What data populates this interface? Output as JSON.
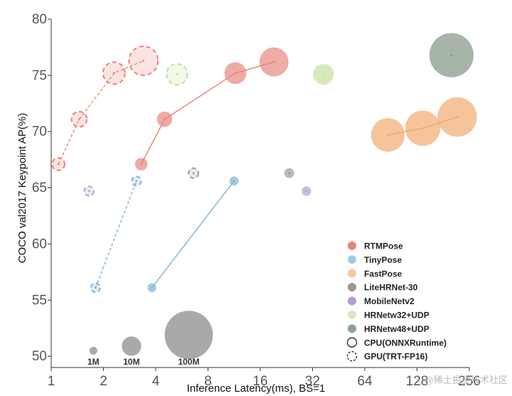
{
  "chart_data": {
    "type": "scatter",
    "xlabel": "Inference Latency(ms), BS=1",
    "ylabel": "COCO val2017 Keypoint AP(%)",
    "x_scale": "log2",
    "xlim": [
      1,
      256
    ],
    "ylim": [
      49,
      80
    ],
    "x_ticks": [
      1,
      2,
      4,
      8,
      16,
      32,
      64,
      128,
      256
    ],
    "x_tick_labels": [
      "1",
      "2",
      "4",
      "8",
      "16",
      "32",
      "64",
      "128",
      "256"
    ],
    "y_ticks": [
      50,
      55,
      60,
      65,
      70,
      75,
      80
    ],
    "y_tick_labels": [
      "50",
      "55",
      "60",
      "65",
      "70",
      "75",
      "80"
    ],
    "grid": false,
    "legend_position": "bottom-right",
    "legend": [
      {
        "label": "RTMPose",
        "color": "#e8837b",
        "style": "filled"
      },
      {
        "label": "TinyPose",
        "color": "#9ecae1",
        "style": "filled"
      },
      {
        "label": "FastPose",
        "color": "#f6c898",
        "style": "filled"
      },
      {
        "label": "LiteHRNet-30",
        "color": "#9a9a9a",
        "style": "filled"
      },
      {
        "label": "MobileNetv2",
        "color": "#b59bcf",
        "style": "filled"
      },
      {
        "label": "HRNetw32+UDP",
        "color": "#d6e8c3",
        "style": "filled"
      },
      {
        "label": "HRNetw48+UDP",
        "color": "#8fa390",
        "style": "filled"
      },
      {
        "label": "CPU(ONNXRuntime)",
        "color": "#222222",
        "style": "solid-outline"
      },
      {
        "label": "GPU(TRT-FP16)",
        "color": "#222222",
        "style": "dashed-outline"
      }
    ],
    "size_legend": [
      {
        "label": "1M",
        "x": 1.75,
        "y": 50.5,
        "params_m": 1
      },
      {
        "label": "10M",
        "x": 2.9,
        "y": 50.9,
        "params_m": 10
      },
      {
        "label": "100M",
        "x": 6.2,
        "y": 51.9,
        "params_m": 100
      }
    ],
    "series": [
      {
        "model": "RTMPose",
        "device": "CPU",
        "color": "#e8837b",
        "line": "solid",
        "points": [
          {
            "x": 3.3,
            "y": 67.1,
            "params_m": 3.3
          },
          {
            "x": 4.5,
            "y": 71.1,
            "params_m": 5.5
          },
          {
            "x": 11.5,
            "y": 75.2,
            "params_m": 13.6
          },
          {
            "x": 19.2,
            "y": 76.2,
            "params_m": 27.7
          }
        ]
      },
      {
        "model": "RTMPose",
        "device": "GPU",
        "color": "#e8837b",
        "line": "dashed",
        "points": [
          {
            "x": 1.1,
            "y": 67.1,
            "params_m": 3.3
          },
          {
            "x": 1.45,
            "y": 71.1,
            "params_m": 5.5
          },
          {
            "x": 2.3,
            "y": 75.2,
            "params_m": 13.6
          },
          {
            "x": 3.4,
            "y": 76.3,
            "params_m": 27.7
          }
        ]
      },
      {
        "model": "TinyPose",
        "device": "CPU",
        "color": "#7fb2d3",
        "line": "solid",
        "points": [
          {
            "x": 3.8,
            "y": 56.1,
            "params_m": 1.4
          },
          {
            "x": 11.3,
            "y": 65.6,
            "params_m": 1.5
          }
        ]
      },
      {
        "model": "TinyPose",
        "device": "GPU",
        "color": "#7fb2d3",
        "line": "dashed",
        "points": [
          {
            "x": 1.8,
            "y": 56.1,
            "params_m": 1.4
          },
          {
            "x": 3.1,
            "y": 65.6,
            "params_m": 1.5
          }
        ]
      },
      {
        "model": "FastPose",
        "device": "CPU",
        "color": "#f0a86a",
        "line": "solid",
        "points": [
          {
            "x": 87,
            "y": 69.7,
            "params_m": 40
          },
          {
            "x": 138,
            "y": 70.3,
            "params_m": 45
          },
          {
            "x": 218,
            "y": 71.3,
            "params_m": 60
          }
        ]
      },
      {
        "model": "LiteHRNet-30",
        "device": "CPU",
        "color": "#9a9a9a",
        "line": "none",
        "points": [
          {
            "x": 23.5,
            "y": 66.3,
            "params_m": 1.8
          }
        ]
      },
      {
        "model": "LiteHRNet-30",
        "device": "GPU",
        "color": "#9a9a9a",
        "line": "none",
        "points": [
          {
            "x": 6.6,
            "y": 66.3,
            "params_m": 1.8
          }
        ]
      },
      {
        "model": "MobileNetv2",
        "device": "CPU",
        "color": "#b59bcf",
        "line": "none",
        "points": [
          {
            "x": 29.5,
            "y": 64.7,
            "params_m": 1.6
          }
        ]
      },
      {
        "model": "MobileNetv2",
        "device": "GPU",
        "color": "#b59bcf",
        "line": "none",
        "points": [
          {
            "x": 1.65,
            "y": 64.7,
            "params_m": 1.6
          }
        ]
      },
      {
        "model": "HRNetw32+UDP",
        "device": "CPU",
        "color": "#c5de9f",
        "line": "none",
        "points": [
          {
            "x": 37,
            "y": 75.1,
            "params_m": 12
          }
        ]
      },
      {
        "model": "HRNetw32+UDP",
        "device": "GPU",
        "color": "#c5de9f",
        "line": "none",
        "points": [
          {
            "x": 5.3,
            "y": 75.1,
            "params_m": 12
          }
        ]
      },
      {
        "model": "HRNetw48+UDP",
        "device": "CPU",
        "color": "#7d917f",
        "line": "none",
        "points": [
          {
            "x": 202,
            "y": 76.8,
            "params_m": 80
          }
        ]
      }
    ]
  },
  "watermark": "@稀土掘金技术社区"
}
